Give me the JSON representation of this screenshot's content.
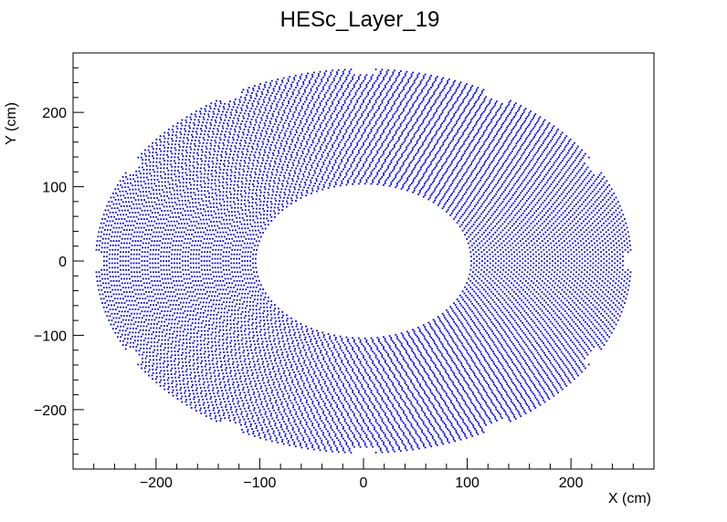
{
  "chart_data": {
    "type": "scatter",
    "title": "HESc_Layer_19",
    "xlabel": "X (cm)",
    "ylabel": "Y (cm)",
    "xlim": [
      -280,
      280
    ],
    "ylim": [
      -280,
      280
    ],
    "x_ticks": [
      -200,
      -100,
      0,
      100,
      200
    ],
    "y_ticks": [
      -200,
      -100,
      0,
      100,
      200
    ],
    "x_tick_labels": [
      "−200",
      "−100",
      "0",
      "100",
      "200"
    ],
    "y_tick_labels": [
      "−200",
      "−100",
      "0",
      "100",
      "200"
    ],
    "marker_color": "#0000ff",
    "frame_color": "#000000",
    "grid": false,
    "legend": "none",
    "series": [
      {
        "distribution": "annular ring of detector cells centered at origin",
        "inner_radius_x": 104,
        "inner_radius_y": 104,
        "outer_radius": 258,
        "outer_shape": "polygon-like with notched edges"
      }
    ]
  }
}
